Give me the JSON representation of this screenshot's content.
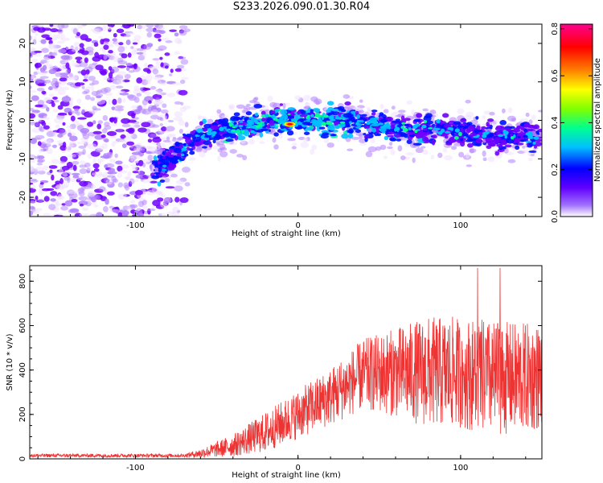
{
  "title": "S233.2026.090.01.30.R04",
  "chart_data": [
    {
      "type": "heatmap",
      "xlabel": "Height of straight line (km)",
      "ylabel": "Frequency (Hz)",
      "xlim": [
        -165,
        150
      ],
      "ylim": [
        -25,
        25
      ],
      "x_ticks": [
        -100,
        0,
        100
      ],
      "y_ticks": [
        -20,
        -10,
        0,
        10,
        20
      ],
      "colorbar": {
        "label": "Normalized spectral amplitude",
        "range": [
          0.0,
          0.82
        ],
        "ticks": [
          "0.0",
          "0.2",
          "0.4",
          "0.6",
          "0.8"
        ],
        "colors": [
          "#ffffff",
          "#8000ff",
          "#0000ff",
          "#00c8ff",
          "#00ff80",
          "#80ff00",
          "#ffff00",
          "#ff8000",
          "#ff0000",
          "#ff00a0"
        ]
      },
      "ridge": {
        "description": "signal ridge frequency offset vs height",
        "points": [
          [
            -85,
            -12
          ],
          [
            -75,
            -9
          ],
          [
            -65,
            -5
          ],
          [
            -50,
            -3
          ],
          [
            -30,
            -1
          ],
          [
            -10,
            0
          ],
          [
            0,
            0
          ],
          [
            20,
            0
          ],
          [
            40,
            -1
          ],
          [
            60,
            -2
          ],
          [
            80,
            -2
          ],
          [
            100,
            -3
          ],
          [
            120,
            -4
          ],
          [
            150,
            -4
          ]
        ],
        "peak": [
          -5,
          -1
        ]
      }
    },
    {
      "type": "line",
      "xlabel": "Height of straight line (km)",
      "ylabel": "SNR (10 * v/v)",
      "xlim": [
        -165,
        150
      ],
      "ylim": [
        0,
        870
      ],
      "x_ticks": [
        -100,
        0,
        100
      ],
      "y_ticks": [
        0,
        200,
        400,
        600,
        800
      ],
      "series": [
        {
          "name": "SNR",
          "color": "#ee3333",
          "envelope": {
            "x": [
              -165,
              -70,
              -60,
              -40,
              -20,
              0,
              20,
              40,
              60,
              80,
              100,
              120,
              150
            ],
            "mean": [
              15,
              15,
              25,
              60,
              120,
              200,
              280,
              380,
              390,
              390,
              390,
              360,
              370
            ],
            "spread": [
              8,
              8,
              20,
              50,
              90,
              110,
              130,
              160,
              200,
              250,
              250,
              260,
              240
            ]
          },
          "max_value": 860
        }
      ]
    }
  ]
}
